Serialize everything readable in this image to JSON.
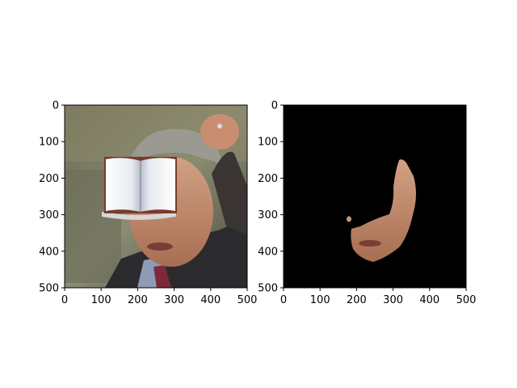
{
  "chart_data": [
    {
      "type": "image",
      "title": "",
      "xlabel": "",
      "ylabel": "",
      "xlim": [
        0,
        500
      ],
      "ylim": [
        500,
        0
      ],
      "xticks": [
        0,
        100,
        200,
        300,
        400,
        500
      ],
      "yticks": [
        0,
        100,
        200,
        300,
        400,
        500
      ],
      "grid": false,
      "content": "photo of a gray-haired man with a raised fist; an open-book illustration covers his eyes",
      "overlay": {
        "type": "open-book",
        "x_range": [
          107,
          307
        ],
        "y_range": [
          145,
          295
        ]
      }
    },
    {
      "type": "image",
      "title": "",
      "xlabel": "",
      "ylabel": "",
      "xlim": [
        0,
        500
      ],
      "ylim": [
        500,
        0
      ],
      "xticks": [
        0,
        100,
        200,
        300,
        400,
        500
      ],
      "yticks": [
        0,
        100,
        200,
        300,
        400,
        500
      ],
      "grid": false,
      "content": "segmentation mask on black background showing only the lower visible part of the face",
      "background_color": "#000000"
    }
  ],
  "colors": {
    "axis": "#000000",
    "skin": "#c9956e",
    "mask_bg": "#000000"
  }
}
